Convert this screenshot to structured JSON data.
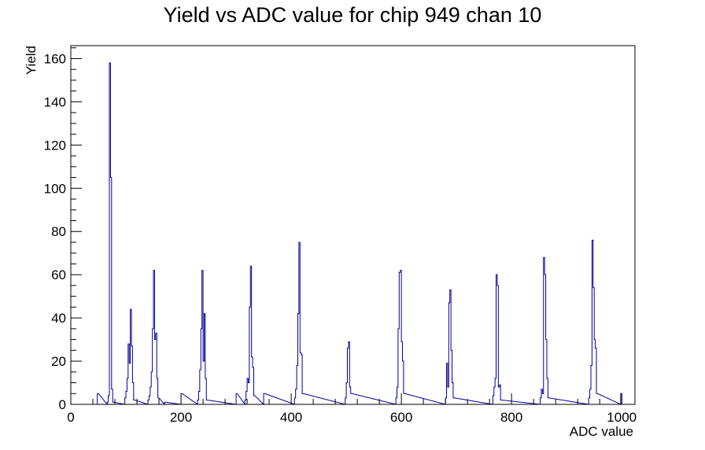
{
  "chart_data": {
    "type": "histogram",
    "title": "Yield vs ADC value for chip 949 chan 10",
    "xlabel": "ADC value",
    "ylabel": "Yield",
    "xlim": [
      0,
      1024
    ],
    "ylim": [
      0,
      166
    ],
    "x_ticks": [
      0,
      200,
      400,
      600,
      800,
      1000
    ],
    "y_ticks": [
      0,
      20,
      40,
      60,
      80,
      100,
      120,
      140,
      160
    ],
    "grid": false,
    "legend": "none",
    "bin_width": 2,
    "line_color": "#000099",
    "bins": [
      [
        48,
        5
      ],
      [
        66,
        1
      ],
      [
        68,
        4
      ],
      [
        70,
        158
      ],
      [
        72,
        105
      ],
      [
        74,
        7
      ],
      [
        76,
        1
      ],
      [
        98,
        3
      ],
      [
        100,
        6
      ],
      [
        102,
        12
      ],
      [
        104,
        28
      ],
      [
        106,
        19
      ],
      [
        108,
        44
      ],
      [
        110,
        27
      ],
      [
        112,
        10
      ],
      [
        114,
        2
      ],
      [
        140,
        2
      ],
      [
        142,
        4
      ],
      [
        144,
        8
      ],
      [
        146,
        15
      ],
      [
        148,
        35
      ],
      [
        150,
        62
      ],
      [
        152,
        30
      ],
      [
        154,
        33
      ],
      [
        156,
        12
      ],
      [
        158,
        3
      ],
      [
        170,
        1
      ],
      [
        200,
        5
      ],
      [
        230,
        2
      ],
      [
        232,
        6
      ],
      [
        234,
        16
      ],
      [
        236,
        35
      ],
      [
        238,
        62
      ],
      [
        240,
        20
      ],
      [
        242,
        42
      ],
      [
        244,
        12
      ],
      [
        246,
        2
      ],
      [
        300,
        5
      ],
      [
        316,
        2
      ],
      [
        318,
        6
      ],
      [
        320,
        12
      ],
      [
        322,
        10
      ],
      [
        324,
        45
      ],
      [
        326,
        64
      ],
      [
        328,
        22
      ],
      [
        330,
        17
      ],
      [
        332,
        4
      ],
      [
        350,
        5
      ],
      [
        406,
        3
      ],
      [
        408,
        7
      ],
      [
        410,
        18
      ],
      [
        412,
        42
      ],
      [
        414,
        75
      ],
      [
        416,
        24
      ],
      [
        418,
        23
      ],
      [
        420,
        5
      ],
      [
        498,
        3
      ],
      [
        500,
        10
      ],
      [
        502,
        26
      ],
      [
        504,
        29
      ],
      [
        506,
        8
      ],
      [
        508,
        5
      ],
      [
        590,
        3
      ],
      [
        592,
        8
      ],
      [
        594,
        35
      ],
      [
        596,
        61
      ],
      [
        598,
        62
      ],
      [
        600,
        29
      ],
      [
        602,
        20
      ],
      [
        604,
        5
      ],
      [
        680,
        3
      ],
      [
        682,
        19
      ],
      [
        684,
        8
      ],
      [
        686,
        47
      ],
      [
        688,
        53
      ],
      [
        690,
        25
      ],
      [
        692,
        10
      ],
      [
        694,
        3
      ],
      [
        766,
        4
      ],
      [
        768,
        8
      ],
      [
        770,
        12
      ],
      [
        772,
        60
      ],
      [
        774,
        55
      ],
      [
        776,
        8
      ],
      [
        778,
        9
      ],
      [
        780,
        2
      ],
      [
        852,
        3
      ],
      [
        854,
        7
      ],
      [
        856,
        5
      ],
      [
        858,
        68
      ],
      [
        860,
        60
      ],
      [
        862,
        30
      ],
      [
        864,
        12
      ],
      [
        866,
        3
      ],
      [
        940,
        3
      ],
      [
        942,
        7
      ],
      [
        944,
        18
      ],
      [
        946,
        76
      ],
      [
        948,
        54
      ],
      [
        950,
        30
      ],
      [
        952,
        26
      ],
      [
        954,
        5
      ],
      [
        998,
        5
      ]
    ]
  }
}
